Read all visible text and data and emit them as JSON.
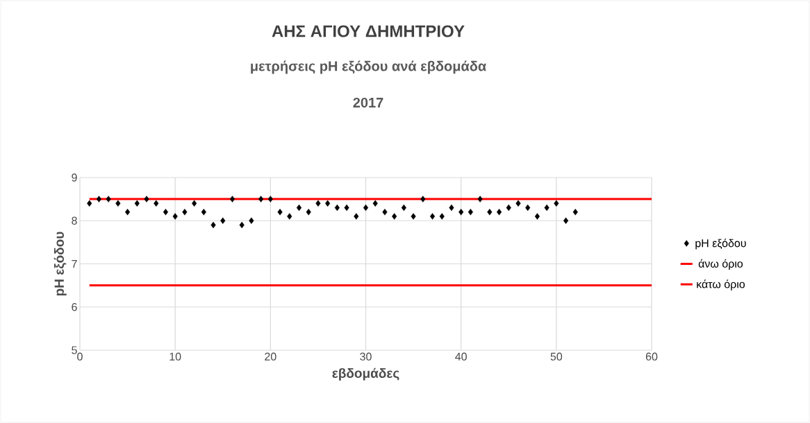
{
  "chart_data": {
    "type": "scatter",
    "title": "ΑΗΣ ΑΓΙΟΥ ΔΗΜΗΤΡΙΟΥ",
    "subtitle": "μετρήσεις pH εξόδου ανά εβδομάδα",
    "annotations": [
      "2017"
    ],
    "xlabel": "εβδομάδες",
    "ylabel": "pH εξόδου",
    "xlim": [
      0,
      60
    ],
    "xticks": [
      0,
      10,
      20,
      30,
      40,
      50,
      60
    ],
    "ylim": [
      5,
      9
    ],
    "yticks": [
      5,
      6,
      7,
      8,
      9
    ],
    "grid": true,
    "legend": "right",
    "series": [
      {
        "name": "pH εξόδου",
        "marker": "diamond",
        "color": "#000000",
        "x": [
          1,
          2,
          3,
          4,
          5,
          6,
          7,
          8,
          9,
          10,
          11,
          12,
          13,
          14,
          15,
          16,
          17,
          18,
          19,
          20,
          21,
          22,
          23,
          24,
          25,
          26,
          27,
          28,
          29,
          30,
          31,
          32,
          33,
          34,
          35,
          36,
          37,
          38,
          39,
          40,
          41,
          42,
          43,
          44,
          45,
          46,
          47,
          48,
          49,
          50,
          51,
          52
        ],
        "values": [
          8.4,
          8.5,
          8.5,
          8.4,
          8.2,
          8.4,
          8.5,
          8.4,
          8.2,
          8.1,
          8.2,
          8.4,
          8.2,
          7.9,
          8.0,
          8.5,
          7.9,
          8.0,
          8.5,
          8.5,
          8.2,
          8.1,
          8.3,
          8.2,
          8.4,
          8.4,
          8.3,
          8.3,
          8.1,
          8.3,
          8.4,
          8.2,
          8.1,
          8.3,
          8.1,
          8.5,
          8.1,
          8.1,
          8.3,
          8.2,
          8.2,
          8.5,
          8.2,
          8.2,
          8.3,
          8.4,
          8.3,
          8.1,
          8.3,
          8.4,
          8.0,
          8.2
        ]
      },
      {
        "name": "άνω όριο",
        "type": "line",
        "marker": "none",
        "color": "#ff0000",
        "x": [
          1,
          60
        ],
        "values": [
          8.5,
          8.5
        ]
      },
      {
        "name": "κάτω όριο",
        "type": "line",
        "marker": "none",
        "color": "#ff0000",
        "x": [
          1,
          60
        ],
        "values": [
          6.5,
          6.5
        ]
      }
    ]
  }
}
